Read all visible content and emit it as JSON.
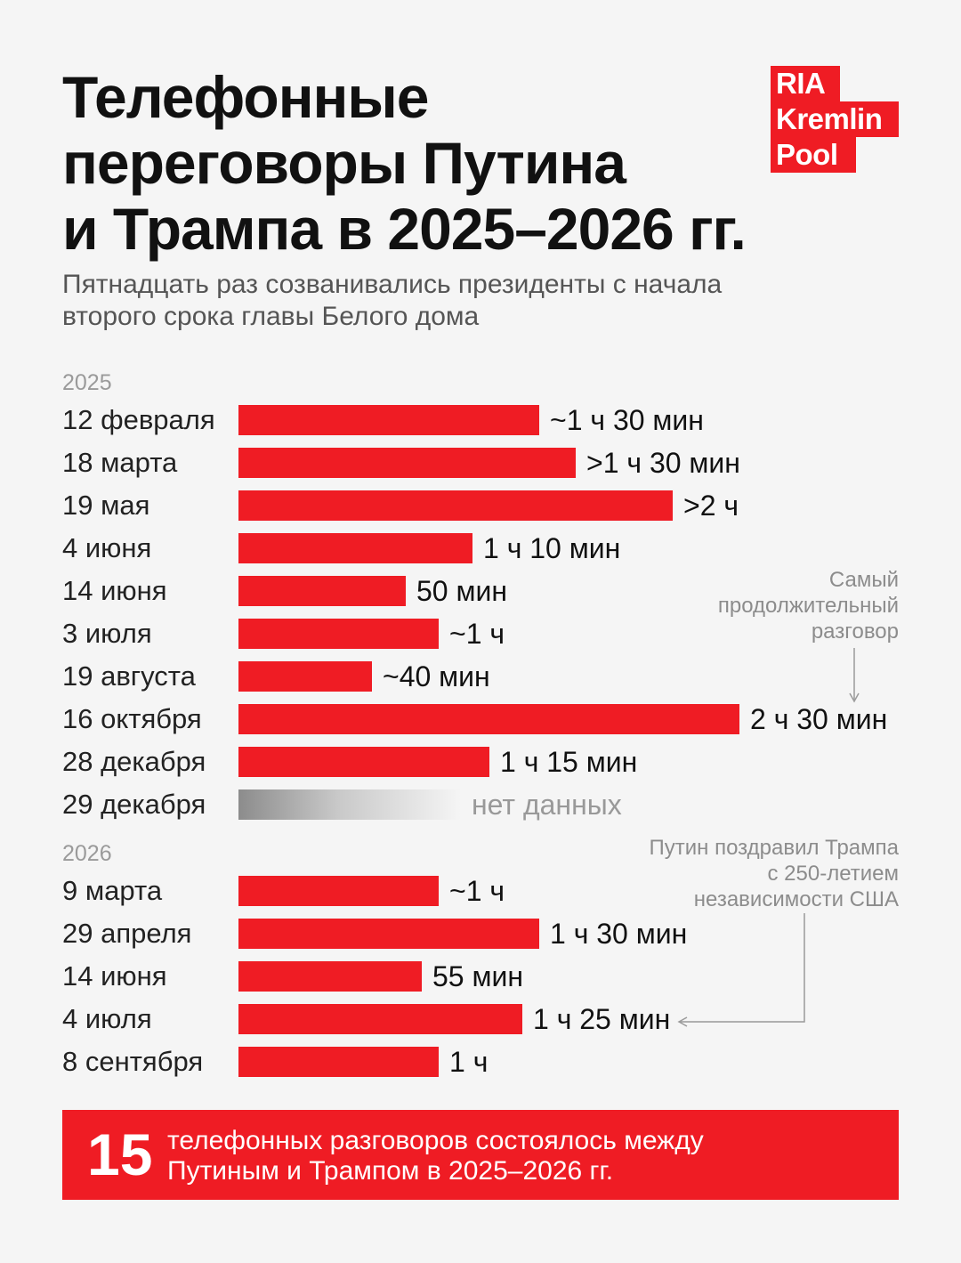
{
  "title_lines": [
    "Телефонные",
    "переговоры Путина",
    "и Трампа в 2025–2026 гг."
  ],
  "subtitle_lines": [
    "Пятнадцать раз созванивались президенты с начала",
    "второго срока главы Белого дома"
  ],
  "logo": {
    "line1": "RIA",
    "line2": "Kremlin",
    "line3": "Pool",
    "color": "#ef1c24"
  },
  "chart_data": {
    "type": "bar",
    "orientation": "horizontal",
    "unit": "minutes",
    "groups": [
      {
        "year": "2025",
        "items": [
          {
            "date": "12 февраля",
            "minutes": 90,
            "label": "~1 ч 30 мин"
          },
          {
            "date": "18 марта",
            "minutes": 101,
            "label": ">1 ч 30 мин"
          },
          {
            "date": "19 мая",
            "minutes": 130,
            "label": ">2 ч"
          },
          {
            "date": "4 июня",
            "minutes": 70,
            "label": "1 ч 10 мин"
          },
          {
            "date": "14 июня",
            "minutes": 50,
            "label": "50 мин"
          },
          {
            "date": "3 июля",
            "minutes": 60,
            "label": "~1 ч"
          },
          {
            "date": "19 августа",
            "minutes": 40,
            "label": "~40 мин"
          },
          {
            "date": "16 октября",
            "minutes": 150,
            "label": "2 ч 30 мин"
          },
          {
            "date": "28 декабря",
            "minutes": 75,
            "label": "1 ч 15 мин"
          },
          {
            "date": "29 декабря",
            "minutes": null,
            "label": "нет данных"
          }
        ]
      },
      {
        "year": "2026",
        "items": [
          {
            "date": "9 марта",
            "minutes": 60,
            "label": "~1 ч"
          },
          {
            "date": "29 апреля",
            "minutes": 90,
            "label": "1 ч 30 мин"
          },
          {
            "date": "14 июня",
            "minutes": 55,
            "label": "55 мин"
          },
          {
            "date": "4 июля",
            "minutes": 85,
            "label": "1 ч 25 мин"
          },
          {
            "date": "8 сентября",
            "minutes": 60,
            "label": "1 ч"
          }
        ]
      }
    ],
    "annotations": [
      {
        "lines": [
          "Самый",
          "продолжительный",
          "разговор"
        ],
        "target": "16 октября"
      },
      {
        "lines": [
          "Путин поздравил Трампа",
          "с 250-летием",
          "независимости США"
        ],
        "target": "4 июля"
      }
    ],
    "bar_color": "#ef1c24"
  },
  "footer": {
    "number": "15",
    "lines": [
      "телефонных разговоров состоялось между",
      "Путиным и Трампом в 2025–2026 гг."
    ]
  }
}
